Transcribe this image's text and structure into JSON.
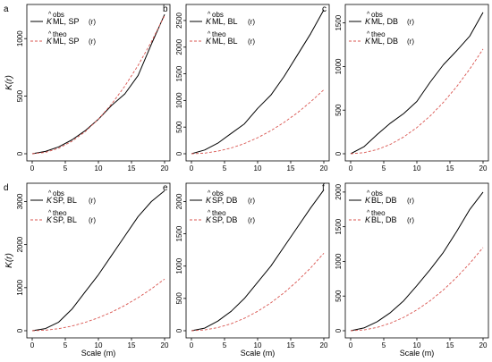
{
  "figure": {
    "common_ylabel": "K(r)",
    "common_xlabel": "Scale (m)"
  },
  "colors": {
    "observed": "#000000",
    "theoretical": "#d9544f",
    "axis": "#000000"
  },
  "chart_data": [
    {
      "id": "a",
      "type": "line",
      "panel_label": "a",
      "xlim": [
        0,
        20
      ],
      "ylim": [
        0,
        1250
      ],
      "xticks": [
        0,
        5,
        10,
        15,
        20
      ],
      "yticks": [
        0,
        500,
        1000
      ],
      "ylabel": "K(r)",
      "xlabel": "",
      "grid": false,
      "legend_position": "top-left",
      "legend": [
        {
          "hat": "^",
          "sup": "obs",
          "base": "K",
          "sub": "ML, SP",
          "arg": "(r)"
        },
        {
          "hat": "^",
          "sup": "theo",
          "base": "K",
          "sub": "ML, SP",
          "arg": "(r)"
        }
      ],
      "x": [
        0,
        2,
        4,
        6,
        8,
        10,
        12,
        14,
        16,
        18,
        20
      ],
      "series": [
        {
          "style": "solid",
          "values": [
            0,
            20,
            60,
            120,
            200,
            300,
            420,
            520,
            680,
            950,
            1210
          ]
        },
        {
          "style": "dashed",
          "values": [
            0,
            12,
            48,
            108,
            192,
            300,
            432,
            588,
            768,
            972,
            1200
          ]
        }
      ]
    },
    {
      "id": "b",
      "type": "line",
      "panel_label": "b",
      "xlim": [
        0,
        20
      ],
      "ylim": [
        0,
        2700
      ],
      "xticks": [
        0,
        5,
        10,
        15,
        20
      ],
      "yticks": [
        0,
        500,
        1000,
        1500,
        2000,
        2500
      ],
      "ylabel": "",
      "xlabel": "",
      "grid": false,
      "legend_position": "top-left",
      "legend": [
        {
          "hat": "^",
          "sup": "obs",
          "base": "K",
          "sub": "ML, BL",
          "arg": "(r)"
        },
        {
          "hat": "^",
          "sup": "theo",
          "base": "K",
          "sub": "ML, BL",
          "arg": "(r)"
        }
      ],
      "x": [
        0,
        2,
        4,
        6,
        8,
        10,
        12,
        14,
        16,
        18,
        20
      ],
      "series": [
        {
          "style": "solid",
          "values": [
            0,
            70,
            200,
            380,
            560,
            850,
            1100,
            1450,
            1850,
            2250,
            2700
          ]
        },
        {
          "style": "dashed",
          "values": [
            0,
            12,
            48,
            108,
            192,
            300,
            432,
            588,
            768,
            972,
            1200
          ]
        }
      ]
    },
    {
      "id": "c",
      "type": "line",
      "panel_label": "c",
      "xlim": [
        0,
        20
      ],
      "ylim": [
        0,
        1650
      ],
      "xticks": [
        0,
        5,
        10,
        15,
        20
      ],
      "yticks": [
        0,
        500,
        1000,
        1500
      ],
      "ylabel": "",
      "xlabel": "",
      "grid": false,
      "legend_position": "top-left",
      "legend": [
        {
          "hat": "^",
          "sup": "obs",
          "base": "K",
          "sub": "ML, DB",
          "arg": "(r)"
        },
        {
          "hat": "^",
          "sup": "theo",
          "base": "K",
          "sub": "ML, DB",
          "arg": "(r)"
        }
      ],
      "x": [
        0,
        2,
        4,
        6,
        8,
        10,
        12,
        14,
        16,
        18,
        20
      ],
      "series": [
        {
          "style": "solid",
          "values": [
            0,
            80,
            220,
            350,
            460,
            600,
            820,
            1020,
            1180,
            1350,
            1620
          ]
        },
        {
          "style": "dashed",
          "values": [
            0,
            12,
            48,
            108,
            192,
            300,
            432,
            588,
            768,
            972,
            1200
          ]
        }
      ]
    },
    {
      "id": "d",
      "type": "line",
      "panel_label": "d",
      "xlim": [
        0,
        20
      ],
      "ylim": [
        0,
        3300
      ],
      "xticks": [
        0,
        5,
        10,
        15,
        20
      ],
      "yticks": [
        0,
        1000,
        2000,
        3000
      ],
      "ylabel": "K(r)",
      "xlabel": "Scale (m)",
      "grid": false,
      "legend_position": "top-left",
      "legend": [
        {
          "hat": "^",
          "sup": "obs",
          "base": "K",
          "sub": "SP, BL",
          "arg": "(r)"
        },
        {
          "hat": "^",
          "sup": "theo",
          "base": "K",
          "sub": "SP, BL",
          "arg": "(r)"
        }
      ],
      "x": [
        0,
        2,
        4,
        6,
        8,
        10,
        12,
        14,
        16,
        18,
        20
      ],
      "series": [
        {
          "style": "solid",
          "values": [
            0,
            50,
            200,
            500,
            900,
            1300,
            1750,
            2200,
            2650,
            3000,
            3250
          ]
        },
        {
          "style": "dashed",
          "values": [
            0,
            12,
            48,
            108,
            192,
            300,
            432,
            588,
            768,
            972,
            1200
          ]
        }
      ]
    },
    {
      "id": "e",
      "type": "line",
      "panel_label": "e",
      "xlim": [
        0,
        20
      ],
      "ylim": [
        0,
        2200
      ],
      "xticks": [
        0,
        5,
        10,
        15,
        20
      ],
      "yticks": [
        0,
        500,
        1000,
        1500,
        2000
      ],
      "ylabel": "",
      "xlabel": "Scale (m)",
      "grid": false,
      "legend_position": "top-left",
      "legend": [
        {
          "hat": "^",
          "sup": "obs",
          "base": "K",
          "sub": "SP, DB",
          "arg": "(r)"
        },
        {
          "hat": "^",
          "sup": "theo",
          "base": "K",
          "sub": "SP, DB",
          "arg": "(r)"
        }
      ],
      "x": [
        0,
        2,
        4,
        6,
        8,
        10,
        12,
        14,
        16,
        18,
        20
      ],
      "series": [
        {
          "style": "solid",
          "values": [
            0,
            40,
            150,
            300,
            500,
            750,
            1000,
            1300,
            1600,
            1900,
            2180
          ]
        },
        {
          "style": "dashed",
          "values": [
            0,
            12,
            48,
            108,
            192,
            300,
            432,
            588,
            768,
            972,
            1200
          ]
        }
      ]
    },
    {
      "id": "f",
      "type": "line",
      "panel_label": "f",
      "xlim": [
        0,
        20
      ],
      "ylim": [
        0,
        2050
      ],
      "xticks": [
        0,
        5,
        10,
        15,
        20
      ],
      "yticks": [
        0,
        500,
        1000,
        1500,
        2000
      ],
      "ylabel": "",
      "xlabel": "Scale (m)",
      "grid": false,
      "legend_position": "top-left",
      "legend": [
        {
          "hat": "^",
          "sup": "obs",
          "base": "K",
          "sub": "BL, DB",
          "arg": "(r)"
        },
        {
          "hat": "^",
          "sup": "theo",
          "base": "K",
          "sub": "BL, DB",
          "arg": "(r)"
        }
      ],
      "x": [
        0,
        2,
        4,
        6,
        8,
        10,
        12,
        14,
        16,
        18,
        20
      ],
      "series": [
        {
          "style": "solid",
          "values": [
            0,
            40,
            130,
            260,
            430,
            650,
            880,
            1130,
            1430,
            1750,
            2000
          ]
        },
        {
          "style": "dashed",
          "values": [
            0,
            12,
            48,
            108,
            192,
            300,
            432,
            588,
            768,
            972,
            1200
          ]
        }
      ]
    }
  ]
}
